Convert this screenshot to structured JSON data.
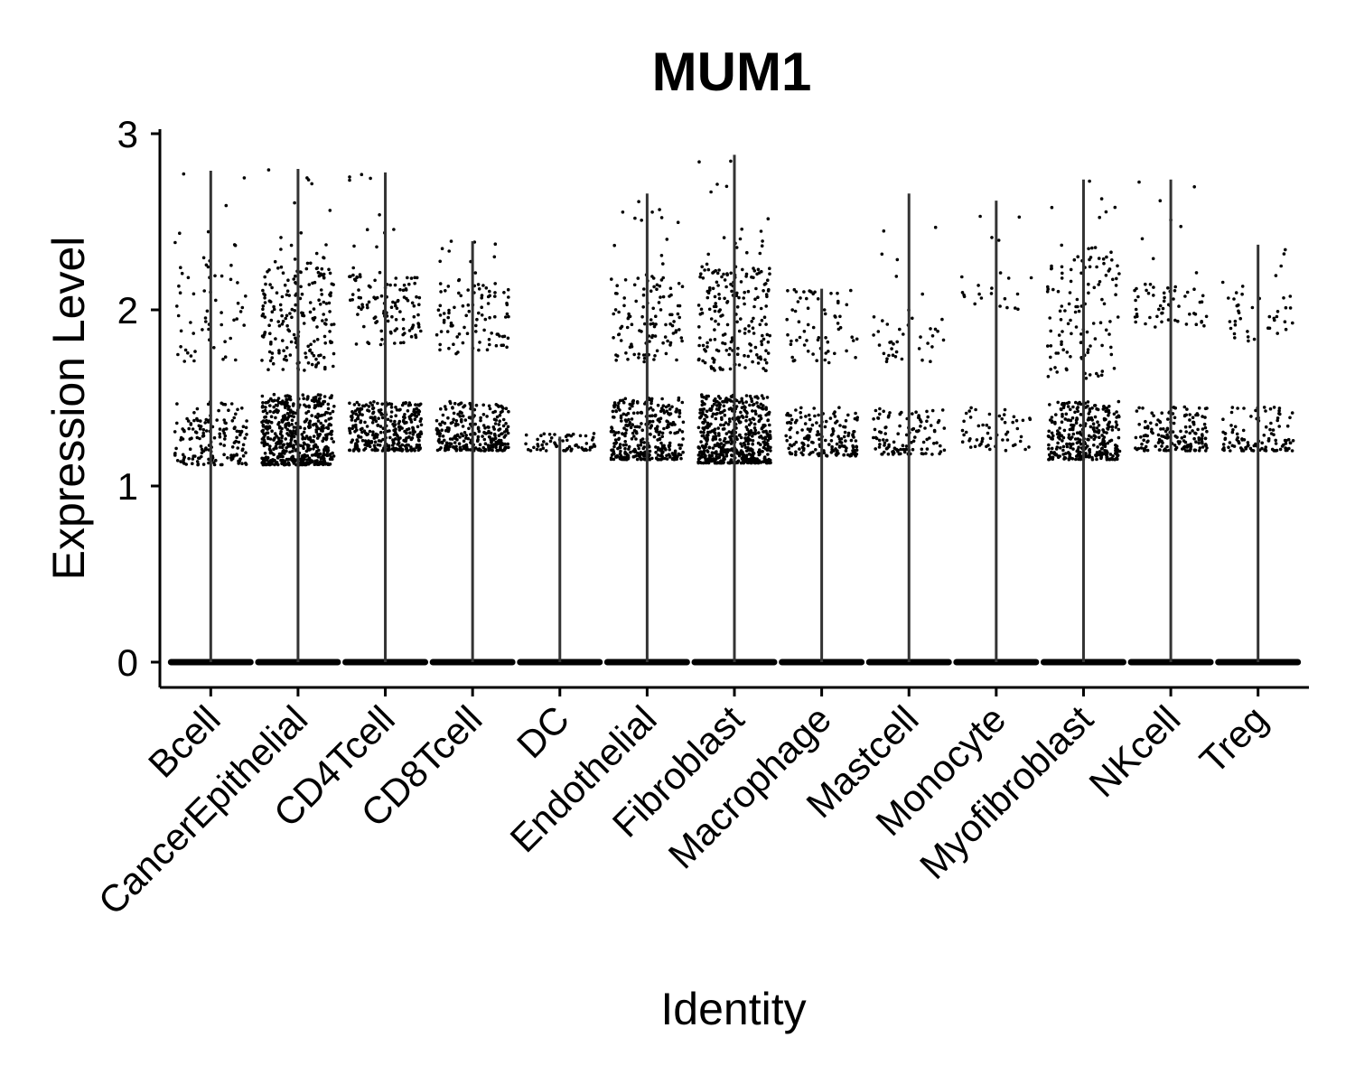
{
  "chart_data": {
    "type": "violin",
    "title": "MUM1",
    "xlabel": "Identity",
    "ylabel": "Expression Level",
    "ylim": [
      -0.14,
      3.02
    ],
    "yticks": [
      0,
      1,
      2,
      3
    ],
    "grid": false,
    "legend": "none",
    "categories": [
      "Bcell",
      "CancerEpithelial",
      "CD4Tcell",
      "CD8Tcell",
      "DC",
      "Endothelial",
      "Fibroblast",
      "Macrophage",
      "Mastcell",
      "Monocyte",
      "Myofibroblast",
      "NKcell",
      "Treg"
    ],
    "series": [
      {
        "max": [
          2.79,
          2.8,
          2.78,
          2.39,
          1.28,
          2.66,
          2.88,
          2.12,
          2.66,
          2.62,
          2.74,
          2.74,
          2.37
        ],
        "zero_band": [
          0,
          0,
          0,
          0,
          0,
          0,
          0,
          0,
          0,
          0,
          0,
          0,
          0
        ],
        "cluster_low": [
          [
            1.12,
            1.48
          ],
          [
            1.12,
            1.52
          ],
          [
            1.2,
            1.48
          ],
          [
            1.2,
            1.48
          ],
          [
            1.2,
            1.3
          ],
          [
            1.15,
            1.5
          ],
          [
            1.13,
            1.52
          ],
          [
            1.17,
            1.45
          ],
          [
            1.18,
            1.45
          ],
          [
            1.2,
            1.45
          ],
          [
            1.15,
            1.48
          ],
          [
            1.2,
            1.45
          ],
          [
            1.2,
            1.45
          ]
        ],
        "cluster_high": [
          [
            1.7,
            2.3
          ],
          [
            1.65,
            2.25
          ],
          [
            1.8,
            2.2
          ],
          [
            1.75,
            2.15
          ],
          null,
          [
            1.7,
            2.2
          ],
          [
            1.65,
            2.25
          ],
          [
            1.7,
            2.1
          ],
          [
            1.7,
            2.0
          ],
          [
            2.0,
            2.2
          ],
          [
            1.6,
            2.3
          ],
          [
            1.9,
            2.15
          ],
          [
            1.8,
            2.1
          ]
        ],
        "density": [
          3,
          10,
          6,
          5,
          1,
          6,
          10,
          3,
          2,
          1,
          6,
          3,
          2
        ]
      }
    ],
    "colors": {
      "points": "#000000",
      "violin": "#000000",
      "axis": "#000000"
    }
  }
}
